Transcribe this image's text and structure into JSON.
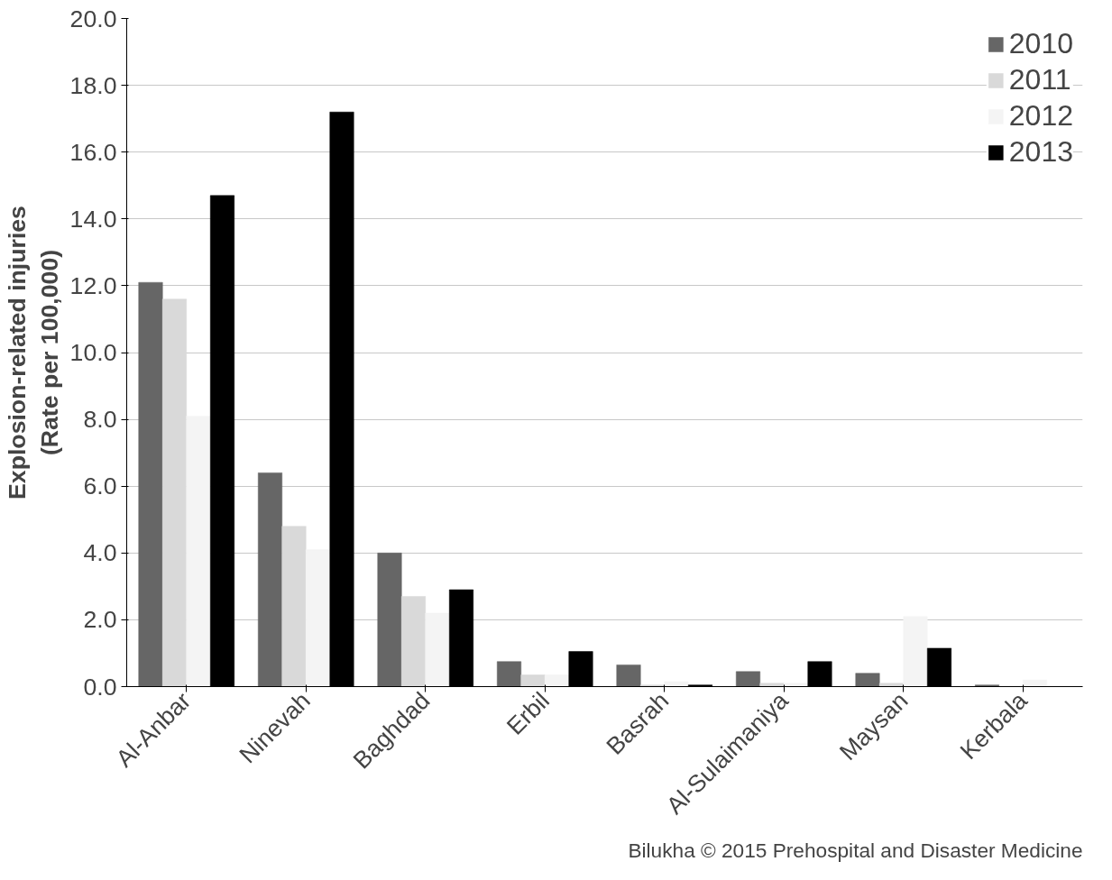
{
  "chart_data": {
    "type": "bar",
    "ylabel": "Explosion-related injuries\n(Rate per 100,000)",
    "categories": [
      "Al-Anbar",
      "Ninevah",
      "Baghdad",
      "Erbil",
      "Basrah",
      "Al-Sulaimaniya",
      "Maysan",
      "Kerbala"
    ],
    "series": [
      {
        "name": "2010",
        "color": "#666666",
        "values": [
          12.1,
          6.4,
          4.0,
          0.75,
          0.65,
          0.45,
          0.4,
          0.05
        ]
      },
      {
        "name": "2011",
        "color": "#d9d9d9",
        "values": [
          11.6,
          4.8,
          2.7,
          0.35,
          0.05,
          0.1,
          0.1,
          0.0
        ]
      },
      {
        "name": "2012",
        "color": "#f4f4f4",
        "values": [
          8.1,
          4.1,
          2.2,
          0.35,
          0.15,
          0.1,
          2.1,
          0.2
        ]
      },
      {
        "name": "2013",
        "color": "#000000",
        "values": [
          14.7,
          17.2,
          2.9,
          1.05,
          0.05,
          0.75,
          1.15,
          0.0
        ]
      }
    ],
    "ylim": [
      0,
      20
    ],
    "yticks": [
      {
        "value": 0,
        "label": "0.0"
      },
      {
        "value": 2,
        "label": "2.0"
      },
      {
        "value": 4,
        "label": "4.0"
      },
      {
        "value": 6,
        "label": "6.0"
      },
      {
        "value": 8,
        "label": "8.0"
      },
      {
        "value": 10,
        "label": "10.0"
      },
      {
        "value": 12,
        "label": "12.0"
      },
      {
        "value": 14,
        "label": "14.0"
      },
      {
        "value": 16,
        "label": "16.0"
      },
      {
        "value": 18,
        "label": "18.0"
      },
      {
        "value": 20,
        "label": "20.0"
      }
    ],
    "grid": "y",
    "legend": "top right",
    "annotations": [
      "Bilukha © 2015 Prehospital and Disaster Medicine"
    ]
  }
}
